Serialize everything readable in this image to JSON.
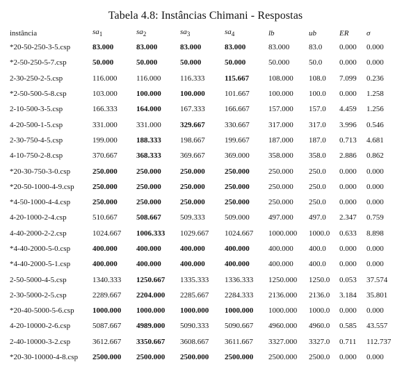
{
  "caption": "Tabela 4.8: Instâncias Chimani - Respostas",
  "headers": {
    "instancia": "instância",
    "sa1": "sa",
    "sa1_sub": "1",
    "sa2": "sa",
    "sa2_sub": "2",
    "sa3": "sa",
    "sa3_sub": "3",
    "sa4": "sa",
    "sa4_sub": "4",
    "lb": "lb",
    "ub": "ub",
    "er": "ER",
    "sigma": "σ"
  },
  "rows": [
    {
      "inst": "*20-50-250-3-5.csp",
      "sa1": "83.000",
      "sa2": "83.000",
      "sa3": "83.000",
      "sa4": "83.000",
      "lb": "83.000",
      "ub": "83.0",
      "er": "0.000",
      "sigma": "0.000",
      "bold": [
        true,
        true,
        true,
        true
      ]
    },
    {
      "inst": "*2-50-250-5-7.csp",
      "sa1": "50.000",
      "sa2": "50.000",
      "sa3": "50.000",
      "sa4": "50.000",
      "lb": "50.000",
      "ub": "50.0",
      "er": "0.000",
      "sigma": "0.000",
      "bold": [
        true,
        true,
        true,
        true
      ]
    },
    {
      "inst": "2-30-250-2-5.csp",
      "sa1": "116.000",
      "sa2": "116.000",
      "sa3": "116.333",
      "sa4": "115.667",
      "lb": "108.000",
      "ub": "108.0",
      "er": "7.099",
      "sigma": "0.236",
      "bold": [
        false,
        false,
        false,
        true
      ]
    },
    {
      "inst": "*2-50-500-5-8.csp",
      "sa1": "103.000",
      "sa2": "100.000",
      "sa3": "100.000",
      "sa4": "101.667",
      "lb": "100.000",
      "ub": "100.0",
      "er": "0.000",
      "sigma": "1.258",
      "bold": [
        false,
        true,
        true,
        false
      ]
    },
    {
      "inst": "2-10-500-3-5.csp",
      "sa1": "166.333",
      "sa2": "164.000",
      "sa3": "167.333",
      "sa4": "166.667",
      "lb": "157.000",
      "ub": "157.0",
      "er": "4.459",
      "sigma": "1.256",
      "bold": [
        false,
        true,
        false,
        false
      ]
    },
    {
      "inst": "4-20-500-1-5.csp",
      "sa1": "331.000",
      "sa2": "331.000",
      "sa3": "329.667",
      "sa4": "330.667",
      "lb": "317.000",
      "ub": "317.0",
      "er": "3.996",
      "sigma": "0.546",
      "bold": [
        false,
        false,
        true,
        false
      ]
    },
    {
      "inst": "2-30-750-4-5.csp",
      "sa1": "199.000",
      "sa2": "188.333",
      "sa3": "198.667",
      "sa4": "199.667",
      "lb": "187.000",
      "ub": "187.0",
      "er": "0.713",
      "sigma": "4.681",
      "bold": [
        false,
        true,
        false,
        false
      ]
    },
    {
      "inst": "4-10-750-2-8.csp",
      "sa1": "370.667",
      "sa2": "368.333",
      "sa3": "369.667",
      "sa4": "369.000",
      "lb": "358.000",
      "ub": "358.0",
      "er": "2.886",
      "sigma": "0.862",
      "bold": [
        false,
        true,
        false,
        false
      ]
    },
    {
      "inst": "*20-30-750-3-0.csp",
      "sa1": "250.000",
      "sa2": "250.000",
      "sa3": "250.000",
      "sa4": "250.000",
      "lb": "250.000",
      "ub": "250.0",
      "er": "0.000",
      "sigma": "0.000",
      "bold": [
        true,
        true,
        true,
        true
      ]
    },
    {
      "inst": "*20-50-1000-4-9.csp",
      "sa1": "250.000",
      "sa2": "250.000",
      "sa3": "250.000",
      "sa4": "250.000",
      "lb": "250.000",
      "ub": "250.0",
      "er": "0.000",
      "sigma": "0.000",
      "bold": [
        true,
        true,
        true,
        true
      ]
    },
    {
      "inst": "*4-50-1000-4-4.csp",
      "sa1": "250.000",
      "sa2": "250.000",
      "sa3": "250.000",
      "sa4": "250.000",
      "lb": "250.000",
      "ub": "250.0",
      "er": "0.000",
      "sigma": "0.000",
      "bold": [
        true,
        true,
        true,
        true
      ]
    },
    {
      "inst": "4-20-1000-2-4.csp",
      "sa1": "510.667",
      "sa2": "508.667",
      "sa3": "509.333",
      "sa4": "509.000",
      "lb": "497.000",
      "ub": "497.0",
      "er": "2.347",
      "sigma": "0.759",
      "bold": [
        false,
        true,
        false,
        false
      ]
    },
    {
      "inst": "4-40-2000-2-2.csp",
      "sa1": "1024.667",
      "sa2": "1006.333",
      "sa3": "1029.667",
      "sa4": "1024.667",
      "lb": "1000.000",
      "ub": "1000.0",
      "er": "0.633",
      "sigma": "8.898",
      "bold": [
        false,
        true,
        false,
        false
      ]
    },
    {
      "inst": "*4-40-2000-5-0.csp",
      "sa1": "400.000",
      "sa2": "400.000",
      "sa3": "400.000",
      "sa4": "400.000",
      "lb": "400.000",
      "ub": "400.0",
      "er": "0.000",
      "sigma": "0.000",
      "bold": [
        true,
        true,
        true,
        true
      ]
    },
    {
      "inst": "*4-40-2000-5-1.csp",
      "sa1": "400.000",
      "sa2": "400.000",
      "sa3": "400.000",
      "sa4": "400.000",
      "lb": "400.000",
      "ub": "400.0",
      "er": "0.000",
      "sigma": "0.000",
      "bold": [
        true,
        true,
        true,
        true
      ]
    },
    {
      "inst": "2-50-5000-4-5.csp",
      "sa1": "1340.333",
      "sa2": "1250.667",
      "sa3": "1335.333",
      "sa4": "1336.333",
      "lb": "1250.000",
      "ub": "1250.0",
      "er": "0.053",
      "sigma": "37.574",
      "bold": [
        false,
        true,
        false,
        false
      ]
    },
    {
      "inst": "2-30-5000-2-5.csp",
      "sa1": "2289.667",
      "sa2": "2204.000",
      "sa3": "2285.667",
      "sa4": "2284.333",
      "lb": "2136.000",
      "ub": "2136.0",
      "er": "3.184",
      "sigma": "35.801",
      "bold": [
        false,
        true,
        false,
        false
      ]
    },
    {
      "inst": "*20-40-5000-5-6.csp",
      "sa1": "1000.000",
      "sa2": "1000.000",
      "sa3": "1000.000",
      "sa4": "1000.000",
      "lb": "1000.000",
      "ub": "1000.0",
      "er": "0.000",
      "sigma": "0.000",
      "bold": [
        true,
        true,
        true,
        true
      ]
    },
    {
      "inst": "4-20-10000-2-6.csp",
      "sa1": "5087.667",
      "sa2": "4989.000",
      "sa3": "5090.333",
      "sa4": "5090.667",
      "lb": "4960.000",
      "ub": "4960.0",
      "er": "0.585",
      "sigma": "43.557",
      "bold": [
        false,
        true,
        false,
        false
      ]
    },
    {
      "inst": "2-40-10000-3-2.csp",
      "sa1": "3612.667",
      "sa2": "3350.667",
      "sa3": "3608.667",
      "sa4": "3611.667",
      "lb": "3327.000",
      "ub": "3327.0",
      "er": "0.711",
      "sigma": "112.737",
      "bold": [
        false,
        true,
        false,
        false
      ]
    },
    {
      "inst": "*20-30-10000-4-8.csp",
      "sa1": "2500.000",
      "sa2": "2500.000",
      "sa3": "2500.000",
      "sa4": "2500.000",
      "lb": "2500.000",
      "ub": "2500.0",
      "er": "0.000",
      "sigma": "0.000",
      "bold": [
        true,
        true,
        true,
        true
      ]
    }
  ]
}
